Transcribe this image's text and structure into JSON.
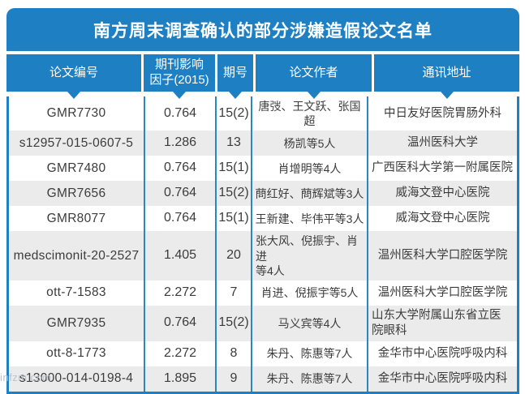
{
  "title": "南方周末调查确认的部分涉嫌造假论文名单",
  "watermark": "infzm.com",
  "colors": {
    "primary_blue": "#1e80c2",
    "inner_border_blue": "#2e86c1",
    "row_alt_gray": "#ebebeb",
    "header_text": "#ffffff",
    "body_text": "#3c3c3c",
    "watermark_gray": "#b9c2ca"
  },
  "chart_data": {
    "type": "table",
    "title": "南方周末调查确认的部分涉嫌造假论文名单",
    "columns": [
      "论文编号",
      "期刊影响\n因子(2015)",
      "期号",
      "论文作者",
      "通讯地址"
    ],
    "rows": [
      [
        "GMR7730",
        "0.764",
        "15(2)",
        "唐弢、王文跃、张国超",
        "中日友好医院胃肠外科"
      ],
      [
        "s12957-015-0607-5",
        "1.286",
        "13",
        "杨凯等5人",
        "温州医科大学"
      ],
      [
        "GMR7480",
        "0.764",
        "15(1)",
        "肖增明等4人",
        "广西医科大学第一附属医院"
      ],
      [
        "GMR7656",
        "0.764",
        "15(2)",
        "蔄红好、蔄辉斌等3人",
        "威海文登中心医院"
      ],
      [
        "GMR8077",
        "0.764",
        "15(1)",
        "王新建、毕伟平等3人",
        "威海文登中心医院"
      ],
      [
        "medscimonit-20-2527",
        "1.405",
        "20",
        "张大风、倪振宇、肖进\n等4人",
        "温州医科大学口腔医学院"
      ],
      [
        "ott-7-1583",
        "2.272",
        "7",
        "肖进、倪振宇等5人",
        "温州医科大学口腔医学院"
      ],
      [
        "GMR7935",
        "0.764",
        "15(2)",
        "马义宾等4人",
        "山东大学附属山东省立医\n院眼科"
      ],
      [
        "ott-8-1773",
        "2.272",
        "8",
        "朱丹、陈惠等7人",
        "金华市中心医院呼吸内科"
      ],
      [
        "s13000-014-0198-4",
        "1.895",
        "9",
        "朱丹、陈惠等7人",
        "金华市中心医院呼吸内科"
      ]
    ],
    "layout": {
      "legend": false,
      "grid": false,
      "header_position": "top",
      "row_striping": "alternate"
    }
  }
}
